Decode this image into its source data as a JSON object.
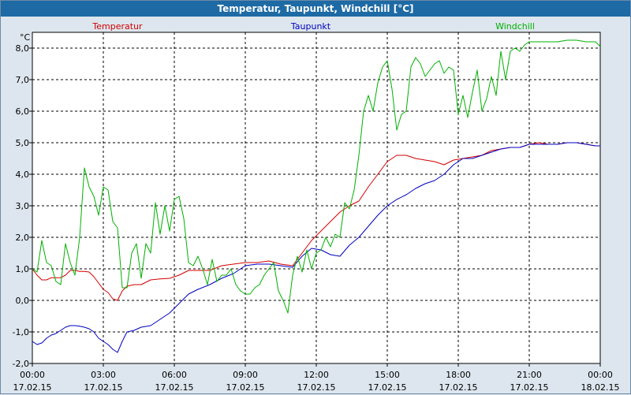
{
  "window": {
    "title": "Temperatur, Taupunkt, Windchill [°C]"
  },
  "chart_data": {
    "type": "line",
    "title": "Temperatur, Taupunkt, Windchill [°C]",
    "ylabel": "°C",
    "ylim": [
      -2.0,
      8.5
    ],
    "xlim": [
      0,
      24
    ],
    "grid": true,
    "legend_position": "top",
    "y_ticks": [
      "-2,0",
      "-1,0",
      "0,0",
      "1,0",
      "2,0",
      "3,0",
      "4,0",
      "5,0",
      "6,0",
      "7,0",
      "8,0"
    ],
    "x_ticks": [
      {
        "time": "00:00",
        "date": "17.02.15"
      },
      {
        "time": "03:00",
        "date": "17.02.15"
      },
      {
        "time": "06:00",
        "date": "17.02.15"
      },
      {
        "time": "09:00",
        "date": "17.02.15"
      },
      {
        "time": "12:00",
        "date": "17.02.15"
      },
      {
        "time": "15:00",
        "date": "17.02.15"
      },
      {
        "time": "18:00",
        "date": "17.02.15"
      },
      {
        "time": "21:00",
        "date": "17.02.15"
      },
      {
        "time": "00:00",
        "date": "18.02.15"
      }
    ],
    "series": [
      {
        "name": "Temperatur",
        "color": "#d40000",
        "x": [
          0,
          0.2,
          0.4,
          0.6,
          0.8,
          1.0,
          1.2,
          1.4,
          1.6,
          1.8,
          2.0,
          2.2,
          2.4,
          2.6,
          2.8,
          3.0,
          3.2,
          3.4,
          3.6,
          3.8,
          4.0,
          4.3,
          4.6,
          5.0,
          5.4,
          5.8,
          6.2,
          6.6,
          7.0,
          7.5,
          8.0,
          8.5,
          9.0,
          9.5,
          10.0,
          10.5,
          11.0,
          11.4,
          11.8,
          12.2,
          12.6,
          13.0,
          13.4,
          13.8,
          14.2,
          14.6,
          15.0,
          15.4,
          15.8,
          16.2,
          16.6,
          17.0,
          17.4,
          17.8,
          18.2,
          18.6,
          19.0,
          19.4,
          19.8,
          20.2,
          20.6,
          21.0,
          21.4,
          21.8,
          22.2,
          22.6,
          23.0,
          23.4,
          23.8,
          24.0
        ],
        "values": [
          1.0,
          0.8,
          0.65,
          0.65,
          0.72,
          0.72,
          0.72,
          0.8,
          0.95,
          0.95,
          0.92,
          0.92,
          0.9,
          0.75,
          0.55,
          0.35,
          0.25,
          0.05,
          0.0,
          0.3,
          0.45,
          0.5,
          0.5,
          0.65,
          0.68,
          0.7,
          0.8,
          0.95,
          0.95,
          0.95,
          1.1,
          1.15,
          1.2,
          1.2,
          1.25,
          1.15,
          1.1,
          1.5,
          1.9,
          2.2,
          2.5,
          2.8,
          3.0,
          3.15,
          3.6,
          4.0,
          4.4,
          4.6,
          4.6,
          4.5,
          4.45,
          4.4,
          4.3,
          4.45,
          4.5,
          4.55,
          4.6,
          4.75,
          4.8,
          4.85,
          4.85,
          4.95,
          5.0,
          4.95,
          4.95,
          5.0,
          5.0,
          4.95,
          4.9,
          4.9
        ]
      },
      {
        "name": "Taupunkt",
        "color": "#0000c0",
        "x": [
          0,
          0.2,
          0.4,
          0.6,
          0.8,
          1.0,
          1.2,
          1.4,
          1.6,
          1.8,
          2.0,
          2.2,
          2.4,
          2.6,
          2.8,
          3.0,
          3.2,
          3.4,
          3.6,
          3.8,
          4.0,
          4.3,
          4.6,
          5.0,
          5.4,
          5.8,
          6.2,
          6.6,
          7.0,
          7.5,
          8.0,
          8.5,
          9.0,
          9.5,
          10.0,
          10.5,
          11.0,
          11.4,
          11.8,
          12.2,
          12.6,
          13.0,
          13.4,
          13.8,
          14.2,
          14.6,
          15.0,
          15.4,
          15.8,
          16.2,
          16.6,
          17.0,
          17.4,
          17.8,
          18.2,
          18.6,
          19.0,
          19.4,
          19.8,
          20.2,
          20.6,
          21.0,
          21.4,
          21.8,
          22.2,
          22.6,
          23.0,
          23.4,
          23.8,
          24.0
        ],
        "values": [
          -1.3,
          -1.4,
          -1.35,
          -1.2,
          -1.1,
          -1.05,
          -0.95,
          -0.85,
          -0.8,
          -0.8,
          -0.82,
          -0.85,
          -0.9,
          -1.0,
          -1.2,
          -1.3,
          -1.4,
          -1.55,
          -1.65,
          -1.3,
          -1.0,
          -0.95,
          -0.85,
          -0.8,
          -0.6,
          -0.4,
          -0.1,
          0.2,
          0.35,
          0.5,
          0.7,
          0.85,
          1.1,
          1.15,
          1.15,
          1.1,
          1.05,
          1.4,
          1.65,
          1.6,
          1.45,
          1.4,
          1.75,
          2.0,
          2.35,
          2.7,
          3.0,
          3.2,
          3.35,
          3.55,
          3.7,
          3.8,
          4.0,
          4.3,
          4.5,
          4.5,
          4.6,
          4.7,
          4.8,
          4.85,
          4.85,
          4.95,
          4.95,
          4.95,
          4.95,
          5.0,
          5.0,
          4.95,
          4.9,
          4.9
        ]
      },
      {
        "name": "Windchill",
        "color": "#00b000",
        "x": [
          0,
          0.2,
          0.4,
          0.6,
          0.8,
          1.0,
          1.2,
          1.4,
          1.6,
          1.8,
          2.0,
          2.2,
          2.4,
          2.6,
          2.8,
          3.0,
          3.2,
          3.4,
          3.6,
          3.8,
          4.0,
          4.2,
          4.4,
          4.6,
          4.8,
          5.0,
          5.2,
          5.4,
          5.6,
          5.8,
          6.0,
          6.2,
          6.4,
          6.6,
          6.8,
          7.0,
          7.2,
          7.4,
          7.6,
          7.8,
          8.0,
          8.2,
          8.4,
          8.6,
          8.8,
          9.0,
          9.2,
          9.4,
          9.6,
          9.8,
          10.0,
          10.2,
          10.4,
          10.6,
          10.8,
          11.0,
          11.2,
          11.4,
          11.6,
          11.8,
          12.0,
          12.2,
          12.4,
          12.6,
          12.8,
          13.0,
          13.2,
          13.4,
          13.6,
          13.8,
          14.0,
          14.2,
          14.4,
          14.6,
          14.8,
          15.0,
          15.2,
          15.4,
          15.6,
          15.8,
          16.0,
          16.2,
          16.4,
          16.6,
          16.8,
          17.0,
          17.2,
          17.4,
          17.6,
          17.8,
          18.0,
          18.2,
          18.4,
          18.6,
          18.8,
          19.0,
          19.2,
          19.4,
          19.6,
          19.8,
          20.0,
          20.2,
          20.4,
          20.6,
          20.8,
          21.0,
          21.4,
          21.8,
          22.2,
          22.6,
          23.0,
          23.4,
          23.8,
          24.0
        ],
        "values": [
          1.0,
          0.9,
          1.9,
          1.2,
          1.1,
          0.6,
          0.5,
          1.8,
          1.2,
          0.8,
          2.0,
          4.2,
          3.6,
          3.3,
          2.7,
          3.6,
          3.5,
          2.5,
          2.3,
          0.4,
          0.4,
          1.5,
          1.8,
          0.7,
          1.8,
          1.5,
          3.1,
          2.1,
          3.0,
          2.2,
          3.2,
          3.3,
          2.6,
          1.2,
          1.1,
          1.4,
          1.0,
          0.5,
          1.3,
          0.6,
          0.8,
          0.8,
          1.0,
          0.5,
          0.3,
          0.2,
          0.2,
          0.4,
          0.5,
          0.8,
          1.0,
          1.2,
          0.3,
          0.0,
          -0.4,
          0.8,
          1.4,
          0.9,
          1.6,
          1.0,
          1.5,
          1.6,
          2.0,
          1.7,
          2.1,
          2.0,
          3.1,
          2.9,
          3.5,
          4.6,
          6.0,
          6.5,
          6.0,
          6.9,
          7.4,
          7.6,
          6.7,
          5.4,
          5.9,
          6.0,
          7.4,
          7.7,
          7.5,
          7.1,
          7.3,
          7.5,
          7.6,
          7.2,
          7.4,
          7.3,
          5.9,
          6.5,
          5.8,
          6.6,
          7.3,
          6.0,
          6.4,
          7.1,
          6.5,
          7.9,
          7.0,
          7.9,
          8.0,
          7.9,
          8.1,
          8.2,
          8.2,
          8.2,
          8.2,
          8.25,
          8.25,
          8.2,
          8.2,
          8.05
        ]
      }
    ]
  }
}
